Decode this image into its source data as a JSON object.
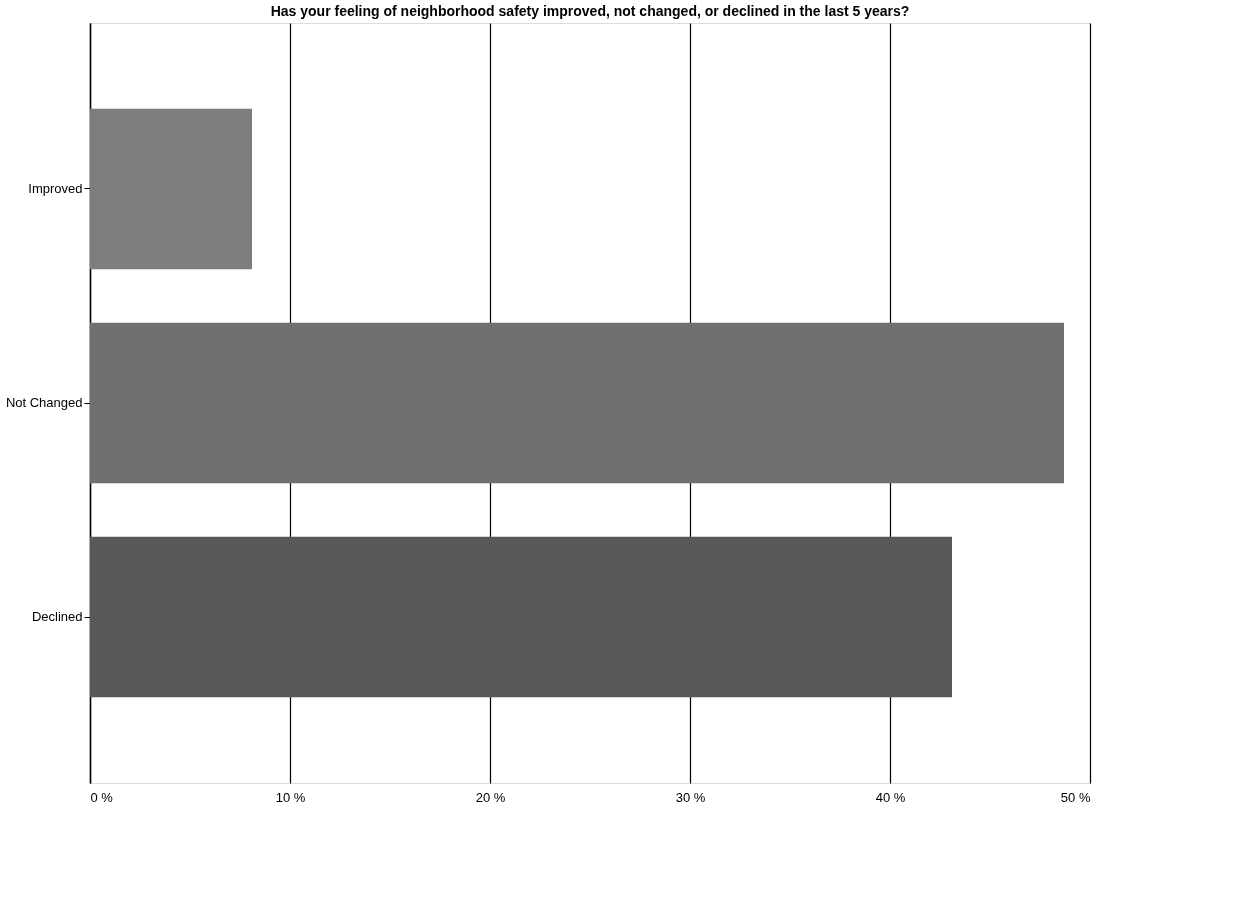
{
  "chart_data": {
    "type": "bar",
    "orientation": "horizontal",
    "title": "Has your feeling of neighborhood safety improved, not changed, or declined in the last 5 years?",
    "categories": [
      "Improved",
      "Not Changed",
      "Declined"
    ],
    "values": [
      8.1,
      48.7,
      43.1
    ],
    "colors": [
      "#7d7d7d",
      "#707070",
      "#585858"
    ],
    "xlim": [
      0,
      50
    ],
    "xticks": [
      {
        "value": 0,
        "label": "0 %"
      },
      {
        "value": 10,
        "label": "10 %"
      },
      {
        "value": 20,
        "label": "20 %"
      },
      {
        "value": 30,
        "label": "30 %"
      },
      {
        "value": 40,
        "label": "40 %"
      },
      {
        "value": 50,
        "label": "50 %"
      }
    ],
    "grid": "x"
  }
}
